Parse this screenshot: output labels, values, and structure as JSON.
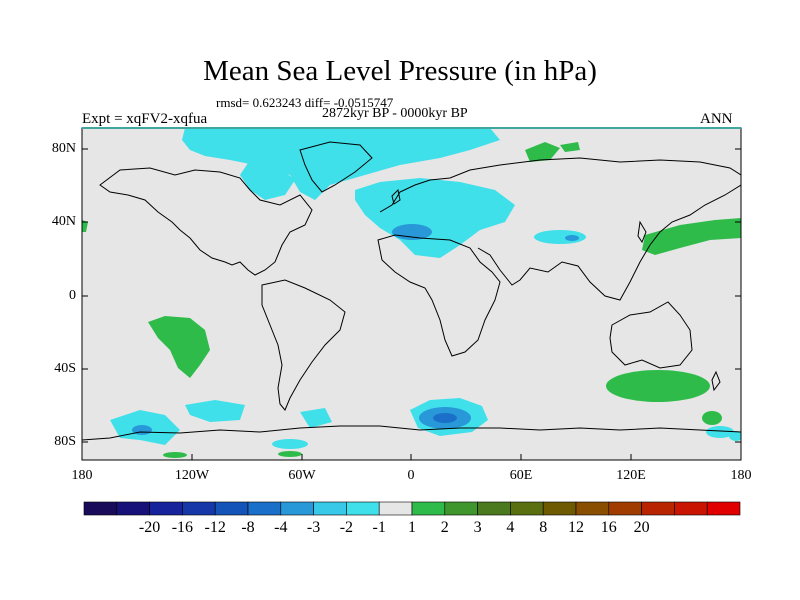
{
  "title": "Mean Sea Level Pressure (in hPa)",
  "stats": "rmsd= 0.623243 diff= -0.0515747",
  "period": "2872kyr BP - 0000kyr BP",
  "experiment": "Expt = xqFV2-xqfua",
  "season": "ANN",
  "lat_labels": [
    "80N",
    "40N",
    "0",
    "40S",
    "80S"
  ],
  "lon_labels": [
    "180",
    "120W",
    "60W",
    "0",
    "60E",
    "120E",
    "180"
  ],
  "colorbar": {
    "colors": [
      "#1a0a5a",
      "#16127a",
      "#16239a",
      "#1537a8",
      "#1453b8",
      "#1a6fc8",
      "#2898d8",
      "#38c8e8",
      "#3fe0ea",
      "#e6e6e6",
      "#2fbb4a",
      "#3f962c",
      "#4b7a1e",
      "#5a6f10",
      "#6e5a00",
      "#8a4e00",
      "#a03c00",
      "#b82400",
      "#c81400",
      "#e00000"
    ],
    "labels": [
      "-20",
      "-16",
      "-12",
      "-8",
      "-4",
      "-3",
      "-2",
      "-1",
      "1",
      "2",
      "3",
      "4",
      "8",
      "12",
      "16",
      "20"
    ]
  },
  "colors": {
    "ocean_neutral": "#e6e6e6",
    "positive": "#2fbb4a",
    "negative_light": "#3fe0ea",
    "negative_mid": "#2898d8",
    "coast": "#000000"
  }
}
